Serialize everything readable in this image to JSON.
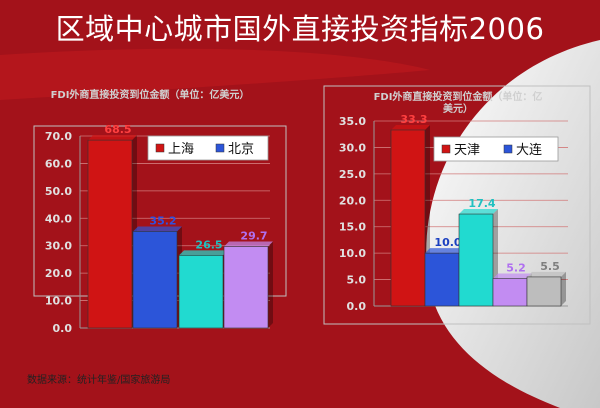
{
  "page_title": "区域中心城市国外直接投资指标2006",
  "source_note": "数据来源：统计年鉴/国家旅游局",
  "colors": {
    "background_dark": "#a3121a",
    "background_light": "#d9d9d9",
    "plot_frame": "#c0c0c0",
    "axis_text": "#e0e0e0",
    "chart_title_text": "#d0d0d0"
  },
  "chart_data": [
    {
      "type": "bar",
      "title": "FDI外商直接投资到位金额（单位：亿美元）",
      "categories": [
        "上海",
        "北京",
        "",
        ""
      ],
      "values": [
        68.5,
        35.2,
        26.5,
        29.7
      ],
      "data_labels": [
        "68.5",
        "35.2",
        "26.5",
        "29.7"
      ],
      "bar_colors": [
        "#d01414",
        "#2c55d9",
        "#21dad0",
        "#c28cf2"
      ],
      "label_colors": [
        "#ff4040",
        "#3050e0",
        "#20c0c0",
        "#b070f0"
      ],
      "ylim": [
        0,
        70
      ],
      "yticks": [
        0,
        10,
        20,
        30,
        40,
        50,
        60,
        70
      ],
      "ytick_labels": [
        "0.0",
        "10.0",
        "20.0",
        "30.0",
        "40.0",
        "50.0",
        "60.0",
        "70.0"
      ],
      "grid": true,
      "legend": {
        "placement": "top-right",
        "entries": [
          {
            "name": "上海",
            "color": "#d01414"
          },
          {
            "name": "北京",
            "color": "#2c55d9"
          }
        ]
      }
    },
    {
      "type": "bar",
      "title": "FDI外商直接投资到位金额（单位：亿美元）",
      "categories": [
        "天津",
        "大连",
        "",
        "",
        ""
      ],
      "values": [
        33.3,
        10.0,
        17.4,
        5.2,
        5.5
      ],
      "data_labels": [
        "33.3",
        "10.0",
        "17.4",
        "5.2",
        "5.5"
      ],
      "bar_colors": [
        "#d01414",
        "#2c55d9",
        "#21dad0",
        "#c28cf2",
        "#bdbdbd"
      ],
      "label_colors": [
        "#ff4040",
        "#1a3fc0",
        "#20c0c0",
        "#b070f0",
        "#7f7f7f"
      ],
      "ylim": [
        0,
        35
      ],
      "yticks": [
        0,
        5,
        10,
        15,
        20,
        25,
        30,
        35
      ],
      "ytick_labels": [
        "0.0",
        "5.0",
        "10.0",
        "15.0",
        "20.0",
        "25.0",
        "30.0",
        "35.0"
      ],
      "grid": true,
      "legend": {
        "placement": "top-right",
        "entries": [
          {
            "name": "天津",
            "color": "#d01414"
          },
          {
            "name": "大连",
            "color": "#2c55d9"
          }
        ]
      }
    }
  ]
}
